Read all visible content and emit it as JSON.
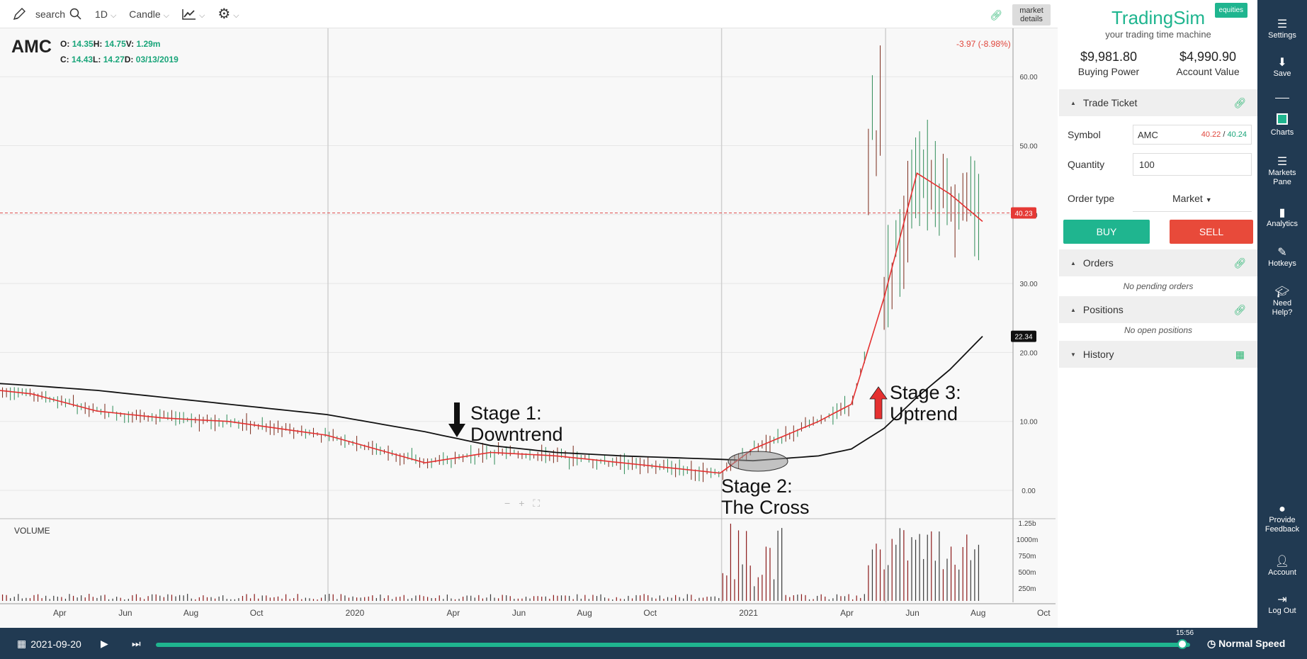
{
  "toolbar": {
    "search_label": "search",
    "interval": "1D",
    "chart_type": "Candle",
    "market_details": "market details"
  },
  "quote": {
    "symbol": "AMC",
    "o_label": "O:",
    "o": "14.35",
    "h_label": "H:",
    "h": "14.75",
    "v_label": "V:",
    "v": "1.29m",
    "c_label": "C:",
    "c": "14.43",
    "l_label": "L:",
    "l": "14.27",
    "d_label": "D:",
    "d": "03/13/2019",
    "change": "-3.97 (-8.98%)"
  },
  "price_axis": {
    "ticks": [
      "60.00",
      "50.00",
      "40.00",
      "30.00",
      "20.00",
      "10.00",
      "0.00"
    ],
    "last_price_tag": "40.23",
    "ma_tag": "22.34"
  },
  "volume_axis": {
    "label": "VOLUME",
    "ticks": [
      "1.25b",
      "1000m",
      "750m",
      "500m",
      "250m"
    ]
  },
  "time_axis": [
    "Apr",
    "Jun",
    "Aug",
    "Oct",
    "2020",
    "Apr",
    "Jun",
    "Aug",
    "Oct",
    "2021",
    "Apr",
    "Jun",
    "Aug",
    "Oct"
  ],
  "annotations": {
    "stage1_line1": "Stage 1:",
    "stage1_line2": "Downtrend",
    "stage2_line1": "Stage 2:",
    "stage2_line2": "The Cross",
    "stage3_line1": "Stage 3:",
    "stage3_line2": "Uptrend"
  },
  "chart_data": {
    "type": "line",
    "x": [
      "2019-03",
      "2019-04",
      "2019-06",
      "2019-08",
      "2019-10",
      "2020-01",
      "2020-04",
      "2020-06",
      "2020-08",
      "2020-10",
      "2021-01",
      "2021-02",
      "2021-04",
      "2021-05",
      "2021-06",
      "2021-07",
      "2021-08",
      "2021-09"
    ],
    "series": [
      {
        "values": [
          14.5,
          14.0,
          11.5,
          10.5,
          10.0,
          8.0,
          4.0,
          5.5,
          5.0,
          4.0,
          2.5,
          6.0,
          10.0,
          12.5,
          28.0,
          46.0,
          43.0,
          39.0
        ]
      },
      {
        "values": [
          15.5,
          15.2,
          14.5,
          13.5,
          12.5,
          11.0,
          8.5,
          6.5,
          5.5,
          5.0,
          4.5,
          4.3,
          5.0,
          6.0,
          9.0,
          13.5,
          17.5,
          22.34
        ]
      }
    ],
    "last_price": 40.23,
    "ylim": [
      0,
      65
    ],
    "volume_ticks": [
      "250m",
      "500m",
      "750m",
      "1000m",
      "1.25b"
    ]
  },
  "panel": {
    "brand_name": "TradingSim",
    "brand_tagline": "your trading time machine",
    "badge": "equities",
    "buying_power": "$9,981.80",
    "buying_power_label": "Buying Power",
    "account_value": "$4,990.90",
    "account_value_label": "Account Value",
    "trade_ticket": "Trade Ticket",
    "symbol_label": "Symbol",
    "symbol_value": "AMC",
    "bid": "40.22",
    "ask": "40.24",
    "quantity_label": "Quantity",
    "quantity_value": "100",
    "order_type_label": "Order type",
    "order_type_value": "Market",
    "buy": "BUY",
    "sell": "SELL",
    "orders": "Orders",
    "no_orders": "No pending orders",
    "positions": "Positions",
    "no_positions": "No open positions",
    "history": "History"
  },
  "sidebar": {
    "settings": "Settings",
    "save": "Save",
    "charts": "Charts",
    "markets_pane_1": "Markets",
    "markets_pane_2": "Pane",
    "analytics": "Analytics",
    "hotkeys": "Hotkeys",
    "need_help_1": "Need",
    "need_help_2": "Help?",
    "feedback_1": "Provide",
    "feedback_2": "Feedback",
    "account": "Account",
    "log_out": "Log Out"
  },
  "playback": {
    "date": "2021-09-20",
    "time": "15:56",
    "speed": "Normal Speed"
  }
}
